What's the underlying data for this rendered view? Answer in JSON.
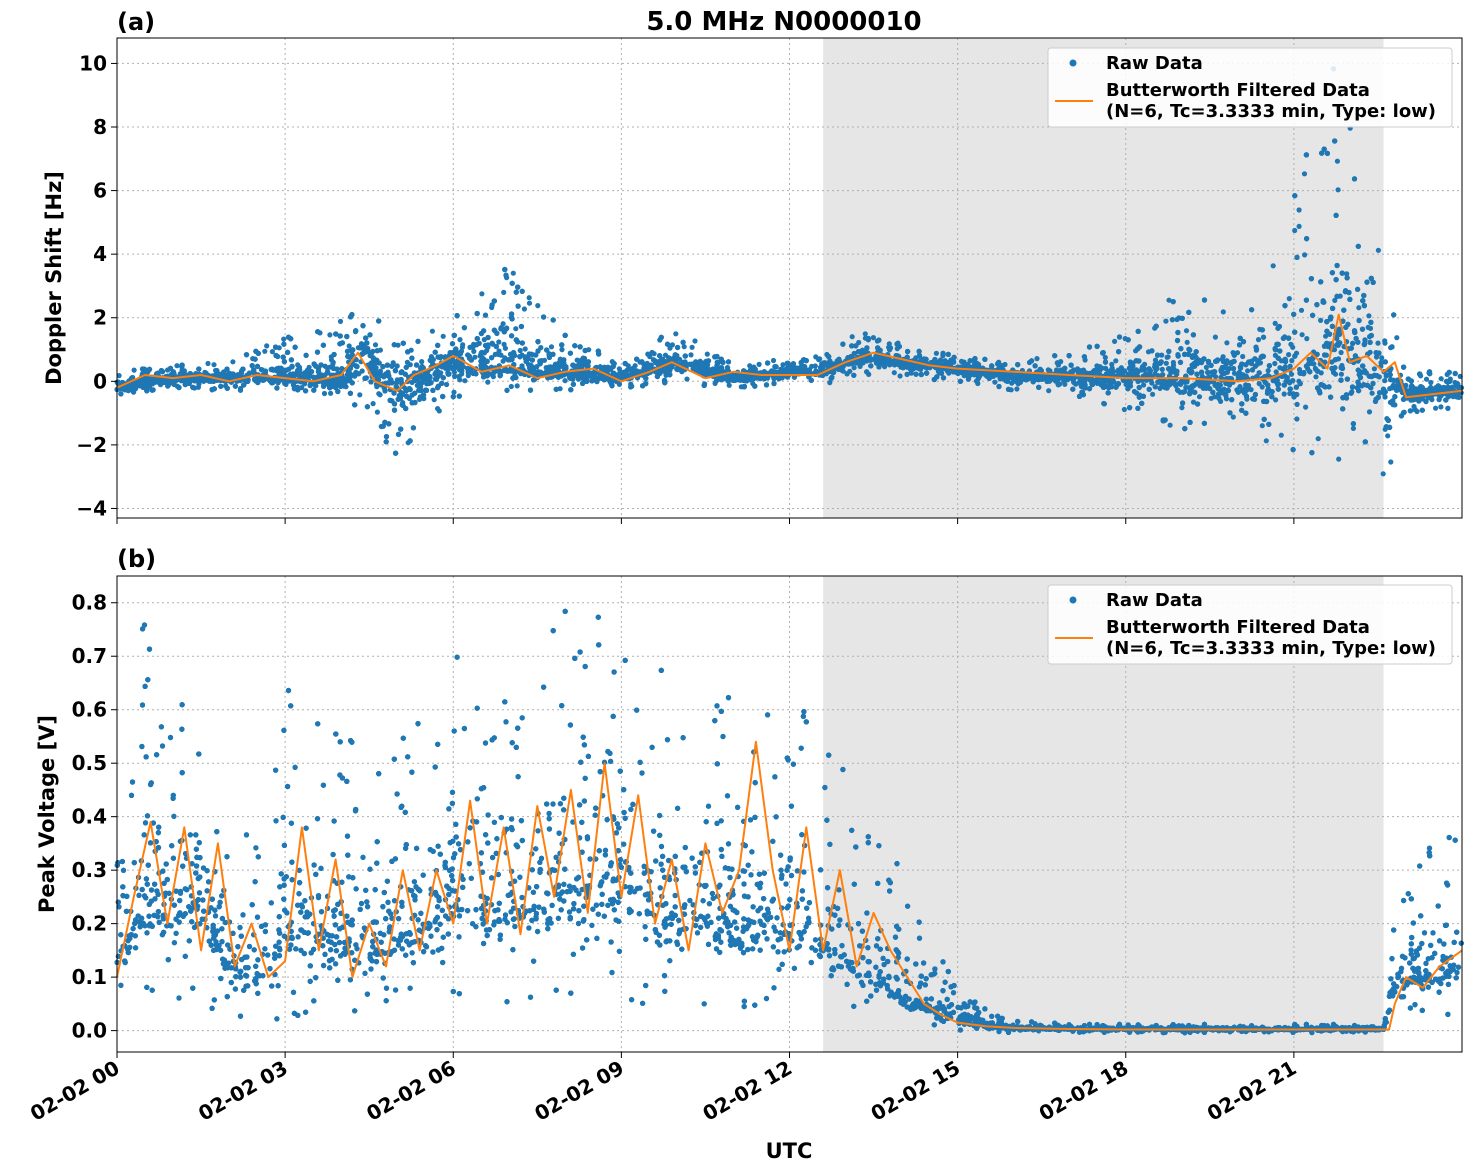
{
  "figure": {
    "title": "5.0 MHz N0000010",
    "xlabel": "UTC",
    "x_tick_labels": [
      "02-02 00",
      "02-02 03",
      "02-02 06",
      "02-02 09",
      "02-02 12",
      "02-02 15",
      "02-02 18",
      "02-02 21"
    ]
  },
  "legend": {
    "raw": "Raw Data",
    "filtered_line1": "Butterworth Filtered Data",
    "filtered_line2": "(N=6, Tc=3.3333 min, Type: low)"
  },
  "colors": {
    "raw": "#1f77b4",
    "filtered": "#ff7f0e",
    "shade": "#e6e6e6",
    "grid": "#b0b0b0"
  },
  "chart_data": [
    {
      "type": "scatter",
      "panel_label": "(a)",
      "ylabel": "Doppler Shift [Hz]",
      "xlim_hours": [
        0,
        24
      ],
      "ylim": [
        -4.3,
        10.8
      ],
      "y_ticks": [
        -4,
        -2,
        0,
        2,
        4,
        6,
        8,
        10
      ],
      "y_tick_labels": [
        "−4",
        "−2",
        "0",
        "2",
        "4",
        "6",
        "8",
        "10"
      ],
      "grid": true,
      "legend_position": "top-right",
      "shaded_interval_hours": [
        12.6,
        22.6
      ],
      "series": [
        {
          "name": "Raw Data",
          "style": "points",
          "x_hours": [
            0,
            1,
            2,
            3,
            4,
            4.4,
            5,
            5.9,
            7,
            8,
            9,
            10,
            11,
            12,
            12.6,
            13.3,
            14,
            15,
            16,
            17,
            18,
            19,
            20,
            21,
            21.7,
            22.2,
            22.6,
            23,
            24
          ],
          "y_center": [
            -0.2,
            0.1,
            0.1,
            0.1,
            0.0,
            0.8,
            -0.4,
            0.6,
            0.4,
            0.3,
            0.1,
            0.6,
            0.1,
            0.3,
            0.3,
            0.8,
            0.6,
            0.4,
            0.2,
            0.1,
            0.1,
            0.1,
            0.0,
            0.5,
            1.0,
            0.6,
            0.2,
            -0.4,
            -0.3
          ],
          "y_min": [
            -0.5,
            -0.2,
            -0.3,
            -0.2,
            -0.6,
            -0.9,
            -2.7,
            -0.6,
            -0.3,
            -0.3,
            -0.2,
            -0.1,
            -0.2,
            -0.1,
            -0.1,
            0.2,
            0.1,
            0.0,
            -0.3,
            -0.5,
            -1.0,
            -1.5,
            -1.5,
            -2.5,
            -2.5,
            -2.5,
            -3.6,
            -1.0,
            -0.8
          ],
          "y_max": [
            0.3,
            0.5,
            0.6,
            1.4,
            1.9,
            3.1,
            1.3,
            1.8,
            3.7,
            1.5,
            0.6,
            1.7,
            0.6,
            0.7,
            0.9,
            1.6,
            1.2,
            0.8,
            0.6,
            0.9,
            1.5,
            2.9,
            2.2,
            6.0,
            10.2,
            7.2,
            4.7,
            0.3,
            0.3
          ]
        },
        {
          "name": "Butterworth Filtered Data",
          "style": "line",
          "x_hours": [
            0,
            0.5,
            1,
            1.5,
            2,
            2.5,
            3,
            3.5,
            4,
            4.3,
            4.6,
            5,
            5.3,
            5.7,
            6,
            6.5,
            7,
            7.5,
            8,
            8.5,
            9,
            9.5,
            9.9,
            10.5,
            11,
            11.5,
            12,
            12.5,
            13,
            13.5,
            14,
            14.5,
            15,
            16,
            17,
            18,
            19,
            20,
            20.6,
            21,
            21.3,
            21.6,
            21.8,
            22,
            22.3,
            22.6,
            22.8,
            23,
            23.5,
            24
          ],
          "y": [
            -0.2,
            0.2,
            0.1,
            0.2,
            0.0,
            0.2,
            0.1,
            0.0,
            0.2,
            0.9,
            0.0,
            -0.3,
            0.2,
            0.5,
            0.8,
            0.3,
            0.5,
            0.1,
            0.3,
            0.4,
            0.0,
            0.3,
            0.6,
            0.1,
            0.3,
            0.2,
            0.2,
            0.2,
            0.6,
            0.9,
            0.7,
            0.5,
            0.4,
            0.3,
            0.2,
            0.1,
            0.1,
            0.0,
            0.1,
            0.4,
            0.9,
            0.4,
            2.1,
            0.6,
            0.8,
            0.3,
            0.6,
            -0.5,
            -0.4,
            -0.3
          ]
        }
      ]
    },
    {
      "type": "scatter",
      "panel_label": "(b)",
      "ylabel": "Peak Voltage [V]",
      "xlim_hours": [
        0,
        24
      ],
      "ylim": [
        -0.04,
        0.85
      ],
      "y_ticks": [
        0.0,
        0.1,
        0.2,
        0.3,
        0.4,
        0.5,
        0.6,
        0.7,
        0.8
      ],
      "y_tick_labels": [
        "0.0",
        "0.1",
        "0.2",
        "0.3",
        "0.4",
        "0.5",
        "0.6",
        "0.7",
        "0.8"
      ],
      "grid": true,
      "legend_position": "top-right",
      "shaded_interval_hours": [
        12.6,
        22.6
      ],
      "series": [
        {
          "name": "Raw Data",
          "style": "points",
          "x_hours": [
            0,
            0.5,
            1,
            1.5,
            2,
            2.5,
            3,
            3.5,
            4,
            4.5,
            5,
            5.5,
            6,
            6.5,
            7,
            7.5,
            8,
            8.5,
            9,
            9.5,
            10,
            10.5,
            11,
            11.5,
            12,
            12.5,
            13,
            13.5,
            14,
            14.5,
            15,
            15.5,
            16,
            17,
            18,
            19,
            20,
            21,
            22,
            22.6,
            22.75,
            23,
            23.5,
            24
          ],
          "y_min": [
            0.03,
            0.04,
            0.05,
            0.04,
            0.03,
            0.02,
            0.02,
            0.02,
            0.03,
            0.03,
            0.03,
            0.04,
            0.05,
            0.05,
            0.05,
            0.06,
            0.06,
            0.05,
            0.04,
            0.04,
            0.04,
            0.04,
            0.04,
            0.04,
            0.03,
            0.03,
            0.03,
            0.02,
            0.01,
            0.01,
            0.0,
            -0.004,
            -0.004,
            -0.004,
            -0.004,
            -0.004,
            -0.004,
            -0.004,
            -0.004,
            -0.004,
            0.01,
            0.03,
            0.03,
            0.03
          ],
          "y_max": [
            0.5,
            0.78,
            0.6,
            0.64,
            0.4,
            0.35,
            0.66,
            0.6,
            0.66,
            0.52,
            0.55,
            0.64,
            0.7,
            0.73,
            0.6,
            0.7,
            0.81,
            0.78,
            0.81,
            0.67,
            0.68,
            0.7,
            0.68,
            0.67,
            0.6,
            0.74,
            0.5,
            0.4,
            0.32,
            0.18,
            0.08,
            0.04,
            0.02,
            0.012,
            0.012,
            0.012,
            0.012,
            0.012,
            0.012,
            0.012,
            0.2,
            0.3,
            0.35,
            0.38
          ],
          "y_center": [
            0.15,
            0.25,
            0.22,
            0.25,
            0.12,
            0.1,
            0.2,
            0.18,
            0.18,
            0.15,
            0.18,
            0.2,
            0.25,
            0.25,
            0.22,
            0.25,
            0.28,
            0.27,
            0.3,
            0.22,
            0.22,
            0.22,
            0.2,
            0.2,
            0.18,
            0.18,
            0.14,
            0.1,
            0.07,
            0.04,
            0.02,
            0.01,
            0.005,
            0.003,
            0.003,
            0.003,
            0.003,
            0.003,
            0.003,
            0.003,
            0.08,
            0.1,
            0.1,
            0.12
          ]
        },
        {
          "name": "Butterworth Filtered Data",
          "style": "line",
          "x_hours": [
            0,
            0.3,
            0.6,
            0.9,
            1.2,
            1.5,
            1.8,
            2.1,
            2.4,
            2.7,
            3,
            3.3,
            3.6,
            3.9,
            4.2,
            4.5,
            4.8,
            5.1,
            5.4,
            5.7,
            6,
            6.3,
            6.6,
            6.9,
            7.2,
            7.5,
            7.8,
            8.1,
            8.4,
            8.7,
            9,
            9.3,
            9.6,
            9.9,
            10.2,
            10.5,
            10.8,
            11.1,
            11.4,
            11.7,
            12,
            12.3,
            12.6,
            12.9,
            13.2,
            13.5,
            13.8,
            14.1,
            14.4,
            14.7,
            15,
            15.5,
            16,
            17,
            18,
            19,
            20,
            21,
            22,
            22.5,
            22.7,
            22.8,
            23,
            23.3,
            23.6,
            24
          ],
          "y": [
            0.1,
            0.25,
            0.39,
            0.2,
            0.38,
            0.15,
            0.35,
            0.12,
            0.2,
            0.1,
            0.13,
            0.38,
            0.15,
            0.32,
            0.1,
            0.2,
            0.12,
            0.3,
            0.15,
            0.3,
            0.2,
            0.43,
            0.2,
            0.38,
            0.18,
            0.42,
            0.25,
            0.45,
            0.22,
            0.5,
            0.25,
            0.44,
            0.2,
            0.32,
            0.15,
            0.35,
            0.22,
            0.3,
            0.54,
            0.3,
            0.15,
            0.38,
            0.15,
            0.3,
            0.12,
            0.22,
            0.15,
            0.1,
            0.05,
            0.03,
            0.015,
            0.008,
            0.005,
            0.003,
            0.002,
            0.002,
            0.002,
            0.002,
            0.002,
            0.002,
            0.002,
            0.05,
            0.1,
            0.08,
            0.12,
            0.15
          ]
        }
      ]
    }
  ]
}
